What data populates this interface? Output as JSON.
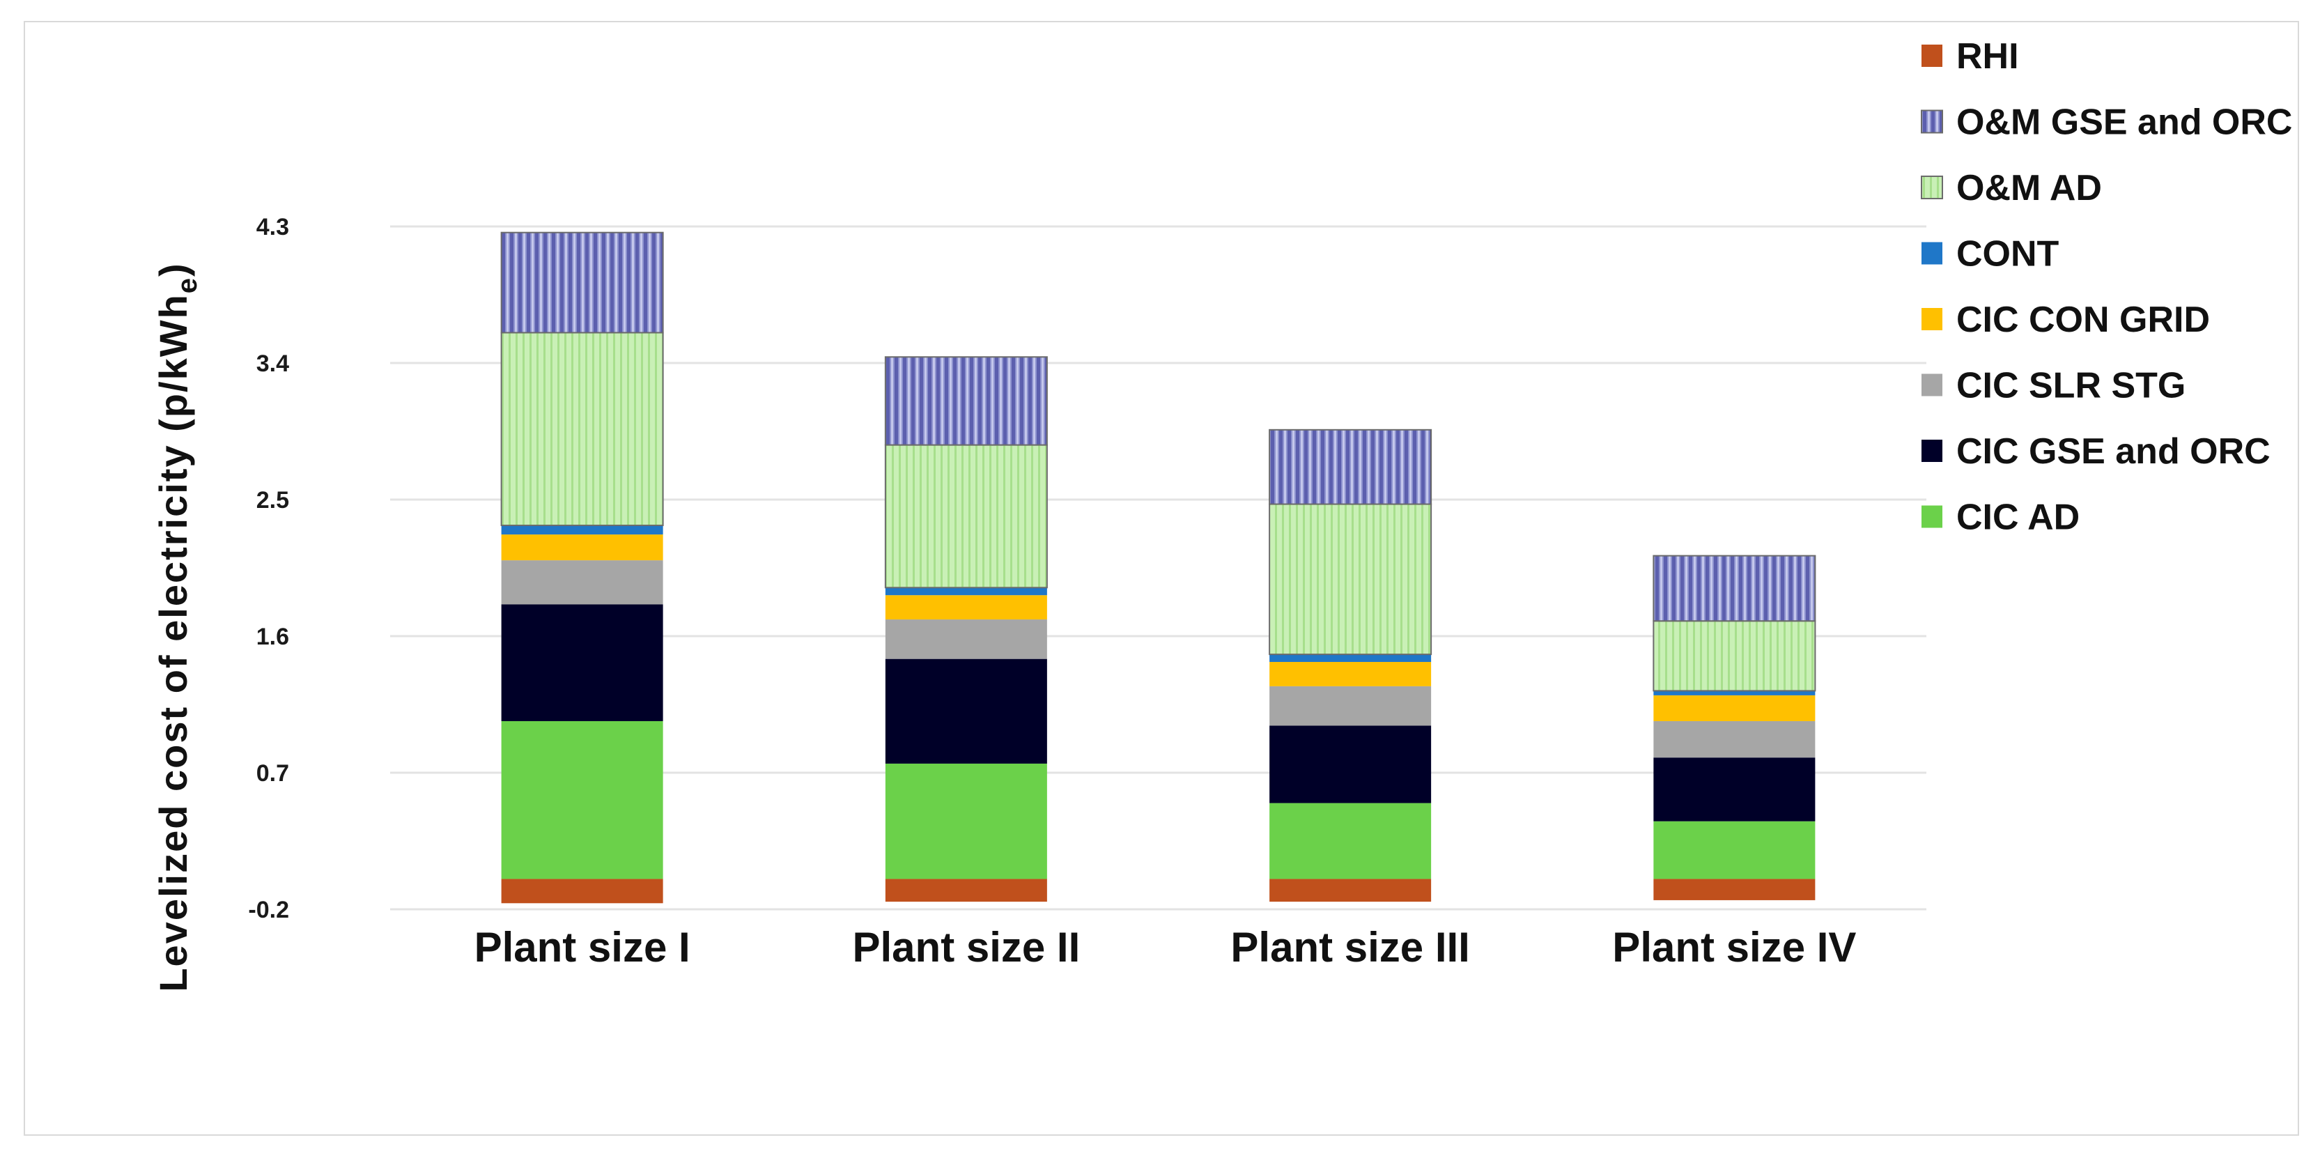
{
  "chart_data": {
    "type": "bar",
    "stacked": true,
    "title": "",
    "xlabel": "",
    "ylabel": "Levelized cost of electricity (p/kWh",
    "ylabel_subscript": "e",
    "ylabel_close": ")",
    "ylim": [
      -0.2,
      4.3
    ],
    "yticks": [
      "-0.2",
      "0.7",
      "1.6",
      "2.5",
      "3.4",
      "4.3"
    ],
    "categories": [
      "Plant size I",
      "Plant size II",
      "Plant size III",
      "Plant size IV"
    ],
    "series": [
      {
        "name": "RHI",
        "color": "#c0501c",
        "pattern": "solid",
        "values": [
          -0.16,
          -0.15,
          -0.15,
          -0.14
        ]
      },
      {
        "name": "CIC AD",
        "color": "#6bd14a",
        "pattern": "solid",
        "values": [
          1.04,
          0.76,
          0.5,
          0.38
        ]
      },
      {
        "name": "CIC GSE and ORC",
        "color": "#000028",
        "pattern": "solid",
        "values": [
          0.77,
          0.69,
          0.51,
          0.42
        ]
      },
      {
        "name": "CIC SLR  STG",
        "color": "#a6a6a6",
        "pattern": "solid",
        "values": [
          0.29,
          0.26,
          0.26,
          0.24
        ]
      },
      {
        "name": "CIC CON GRID",
        "color": "#ffc000",
        "pattern": "solid",
        "values": [
          0.17,
          0.16,
          0.16,
          0.17
        ]
      },
      {
        "name": "CONT",
        "color": "#1f77c8",
        "pattern": "solid",
        "values": [
          0.06,
          0.05,
          0.05,
          0.03
        ]
      },
      {
        "name": "O&M AD",
        "color": "#c3edb0",
        "pattern": "vstripe",
        "values": [
          1.27,
          0.94,
          0.99,
          0.46
        ]
      },
      {
        "name": "O&M GSE and ORC",
        "color": "#8e93cf",
        "pattern": "vstripe",
        "values": [
          0.66,
          0.58,
          0.49,
          0.43
        ]
      }
    ],
    "legend": {
      "placement": "right",
      "order": [
        "RHI",
        "O&M GSE and ORC",
        "O&M AD",
        "CONT",
        "CIC CON GRID",
        "CIC SLR  STG",
        "CIC GSE and ORC",
        "CIC AD"
      ]
    },
    "grid": true
  }
}
